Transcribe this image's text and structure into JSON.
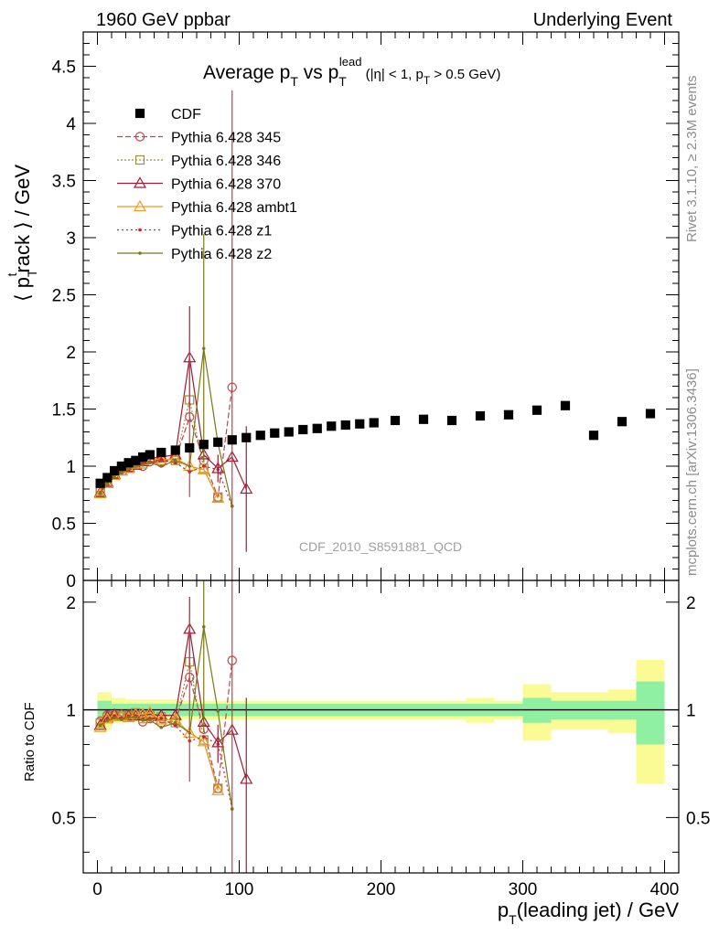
{
  "header": {
    "left": "1960 GeV ppbar",
    "right": "Underlying Event"
  },
  "side_labels": {
    "rivet": "Rivet 3.1.10, ≥ 2.3M events",
    "mcplots": "mcplots.cern.ch [arXiv:1306.3436]"
  },
  "watermark": "CDF_2010_S8591881_QCD",
  "chart_data": [
    {
      "panel": "main",
      "type": "scatter",
      "title": "Average p_T vs p_T^lead (|η| < 1, p_T > 0.5 GeV)",
      "title_parts": {
        "a": "Average p",
        "a_sub": "T",
        "b": " vs p",
        "b_sub": "T",
        "b_sup": "lead",
        "c": " (|η| < 1, p",
        "c_sub": "T",
        "d": " > 0.5 GeV)"
      },
      "ylabel": "⟨ p_T^track ⟩ / GeV",
      "ylabel_parts": {
        "a": "⟨ p",
        "sub": "T",
        "sup": "t",
        "b": "rack ⟩ / GeV"
      },
      "xlim": [
        -10,
        410
      ],
      "ylim": [
        0,
        4.8
      ],
      "yticks": [
        "0",
        "0.5",
        "1",
        "1.5",
        "2",
        "2.5",
        "3",
        "3.5",
        "4",
        "4.5"
      ],
      "yticks_values": [
        0,
        0.5,
        1,
        1.5,
        2,
        2.5,
        3,
        3.5,
        4,
        4.5
      ],
      "legend": {
        "placement": "top-left",
        "entries": [
          "CDF",
          "Pythia 6.428 345",
          "Pythia 6.428 346",
          "Pythia 6.428 370",
          "Pythia 6.428 ambt1",
          "Pythia 6.428 z1",
          "Pythia 6.428 z2"
        ]
      },
      "data": {
        "name": "CDF",
        "color": "#000000",
        "x": [
          2,
          7,
          12,
          17,
          22,
          27,
          32,
          37,
          45,
          55,
          65,
          75,
          85,
          95,
          105,
          115,
          125,
          135,
          145,
          155,
          165,
          175,
          185,
          195,
          210,
          230,
          250,
          270,
          290,
          310,
          330,
          350,
          370,
          390
        ],
        "y": [
          0.85,
          0.9,
          0.96,
          1.0,
          1.03,
          1.05,
          1.08,
          1.1,
          1.12,
          1.14,
          1.16,
          1.19,
          1.21,
          1.23,
          1.25,
          1.27,
          1.29,
          1.3,
          1.32,
          1.33,
          1.35,
          1.36,
          1.37,
          1.38,
          1.4,
          1.41,
          1.4,
          1.44,
          1.45,
          1.49,
          1.53,
          1.27,
          1.39,
          1.46
        ]
      },
      "series": [
        {
          "name": "Pythia 6.428 345",
          "color": "#c0424c",
          "dash": "6,3",
          "marker": "circle",
          "x": [
            2,
            7,
            12,
            17,
            22,
            27,
            32,
            37,
            45,
            55,
            65,
            75,
            85,
            95
          ],
          "y": [
            0.79,
            0.87,
            0.93,
            0.97,
            1.0,
            1.02,
            1.0,
            1.04,
            1.03,
            1.06,
            1.43,
            1.05,
            0.73,
            1.69
          ]
        },
        {
          "name": "Pythia 6.428 346",
          "color": "#a88a3c",
          "dash": "2,2",
          "marker": "square",
          "x": [
            2,
            7,
            12,
            17,
            22,
            27,
            32,
            37,
            45,
            55,
            65,
            75,
            85
          ],
          "y": [
            0.78,
            0.86,
            0.93,
            0.96,
            0.99,
            1.03,
            1.02,
            1.06,
            1.07,
            1.05,
            1.58,
            0.98,
            0.73
          ]
        },
        {
          "name": "Pythia 6.428 370",
          "color": "#a01c34",
          "dash": "",
          "marker": "triangle",
          "x": [
            2,
            7,
            12,
            17,
            22,
            27,
            32,
            37,
            45,
            55,
            65,
            75,
            85,
            95,
            105
          ],
          "y": [
            0.77,
            0.86,
            0.93,
            0.96,
            0.99,
            1.01,
            1.04,
            1.07,
            1.08,
            1.1,
            1.95,
            1.1,
            0.98,
            1.08,
            0.8
          ]
        },
        {
          "name": "Pythia 6.428 ambt1",
          "color": "#f29a1c",
          "dash": "",
          "marker": "triangle",
          "x": [
            2,
            7,
            12,
            17,
            22,
            27,
            32,
            37,
            45,
            55,
            65,
            75,
            85
          ],
          "y": [
            0.76,
            0.85,
            0.92,
            0.96,
            0.98,
            1.02,
            1.05,
            1.08,
            1.05,
            1.07,
            1.0,
            0.97,
            0.72
          ]
        },
        {
          "name": "Pythia 6.428 z1",
          "color": "#c8252c",
          "dash": "2,3",
          "marker": "dot",
          "x": [
            2,
            7,
            12,
            17,
            22,
            27,
            32,
            37,
            45,
            55,
            65,
            75,
            85,
            95
          ],
          "y": [
            0.77,
            0.85,
            0.92,
            0.95,
            0.99,
            1.01,
            1.02,
            1.04,
            1.06,
            1.03,
            0.95,
            1.0,
            0.97,
            0.65
          ]
        },
        {
          "name": "Pythia 6.428 z2",
          "color": "#7a7a18",
          "dash": "",
          "marker": "dot",
          "x": [
            2,
            7,
            12,
            17,
            22,
            27,
            32,
            37,
            45,
            55,
            65,
            75,
            85,
            95
          ],
          "y": [
            0.77,
            0.84,
            0.91,
            0.94,
            0.98,
            1.0,
            1.01,
            1.03,
            1.0,
            1.05,
            1.0,
            2.03,
            1.2,
            0.65
          ]
        }
      ]
    },
    {
      "panel": "ratio",
      "type": "line",
      "ylabel": "Ratio to CDF",
      "xlabel": "p_T(leading jet) / GeV",
      "xlabel_parts": {
        "a": "p",
        "sub": "T",
        "b": "(leading jet) / GeV"
      },
      "xlim": [
        -10,
        410
      ],
      "ylim": [
        0.35,
        2.3
      ],
      "log_y": true,
      "xticks": [
        "0",
        "100",
        "200",
        "300",
        "400"
      ],
      "xticks_values": [
        0,
        100,
        200,
        300,
        400
      ],
      "yticks": [
        "0.5",
        "1",
        "2"
      ],
      "yticks_values": [
        0.5,
        1,
        2
      ],
      "band_colors": {
        "inner": "#8ef0a0",
        "outer": "#fbfb96"
      },
      "bands": {
        "x_edges": [
          0,
          10,
          20,
          30,
          40,
          50,
          60,
          70,
          80,
          90,
          100,
          120,
          140,
          160,
          180,
          200,
          220,
          240,
          260,
          280,
          300,
          320,
          340,
          360,
          380,
          400
        ],
        "inner": [
          0.06,
          0.04,
          0.04,
          0.04,
          0.04,
          0.04,
          0.04,
          0.04,
          0.04,
          0.04,
          0.04,
          0.04,
          0.04,
          0.04,
          0.04,
          0.04,
          0.04,
          0.04,
          0.04,
          0.04,
          0.08,
          0.06,
          0.06,
          0.06,
          0.2
        ],
        "outer": [
          0.12,
          0.08,
          0.07,
          0.07,
          0.07,
          0.07,
          0.06,
          0.06,
          0.06,
          0.06,
          0.06,
          0.06,
          0.06,
          0.06,
          0.06,
          0.06,
          0.06,
          0.06,
          0.08,
          0.06,
          0.18,
          0.12,
          0.12,
          0.14,
          0.38
        ]
      }
    }
  ]
}
